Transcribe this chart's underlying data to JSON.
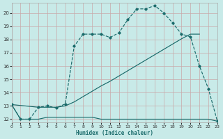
{
  "xlabel": "Humidex (Indice chaleur)",
  "bg_color": "#c8eae8",
  "grid_color": "#c8a8aa",
  "line_color": "#1a6b6b",
  "xlim": [
    0,
    23
  ],
  "ylim": [
    11.75,
    20.75
  ],
  "xticks": [
    0,
    1,
    2,
    3,
    4,
    5,
    6,
    7,
    8,
    9,
    10,
    11,
    12,
    13,
    14,
    15,
    16,
    17,
    18,
    19,
    20,
    21,
    22,
    23
  ],
  "yticks": [
    12,
    13,
    14,
    15,
    16,
    17,
    18,
    19,
    20
  ],
  "curve1_x": [
    0,
    1,
    2,
    3,
    4,
    5,
    6,
    7,
    8,
    9,
    10,
    11,
    12,
    13,
    14,
    15,
    16,
    17,
    18,
    19,
    20,
    21,
    22,
    23
  ],
  "curve1_y": [
    13.1,
    12.0,
    12.0,
    12.9,
    13.0,
    12.85,
    13.15,
    17.5,
    18.4,
    18.4,
    18.4,
    18.15,
    18.5,
    19.5,
    20.3,
    20.3,
    20.55,
    20.0,
    19.25,
    18.4,
    18.2,
    16.0,
    14.3,
    11.85
  ],
  "curve2_x": [
    0,
    3,
    4,
    5,
    6,
    7,
    8,
    9,
    10,
    11,
    12,
    13,
    14,
    15,
    16,
    17,
    18,
    19,
    20,
    21
  ],
  "curve2_y": [
    13.1,
    12.9,
    12.9,
    12.9,
    13.0,
    13.3,
    13.7,
    14.1,
    14.5,
    14.85,
    15.25,
    15.65,
    16.05,
    16.45,
    16.85,
    17.25,
    17.65,
    18.05,
    18.4,
    18.4
  ],
  "curve3_x": [
    0,
    1,
    2,
    3,
    4,
    5,
    6,
    7,
    8,
    9,
    10,
    11,
    12,
    13,
    14,
    15,
    16,
    17,
    18,
    19,
    20,
    21,
    22,
    23
  ],
  "curve3_y": [
    13.1,
    12.0,
    12.0,
    12.0,
    12.15,
    12.15,
    12.15,
    12.15,
    12.15,
    12.15,
    12.0,
    12.0,
    12.0,
    12.0,
    12.0,
    12.0,
    12.0,
    12.0,
    12.0,
    12.0,
    12.0,
    12.0,
    12.0,
    11.85
  ]
}
